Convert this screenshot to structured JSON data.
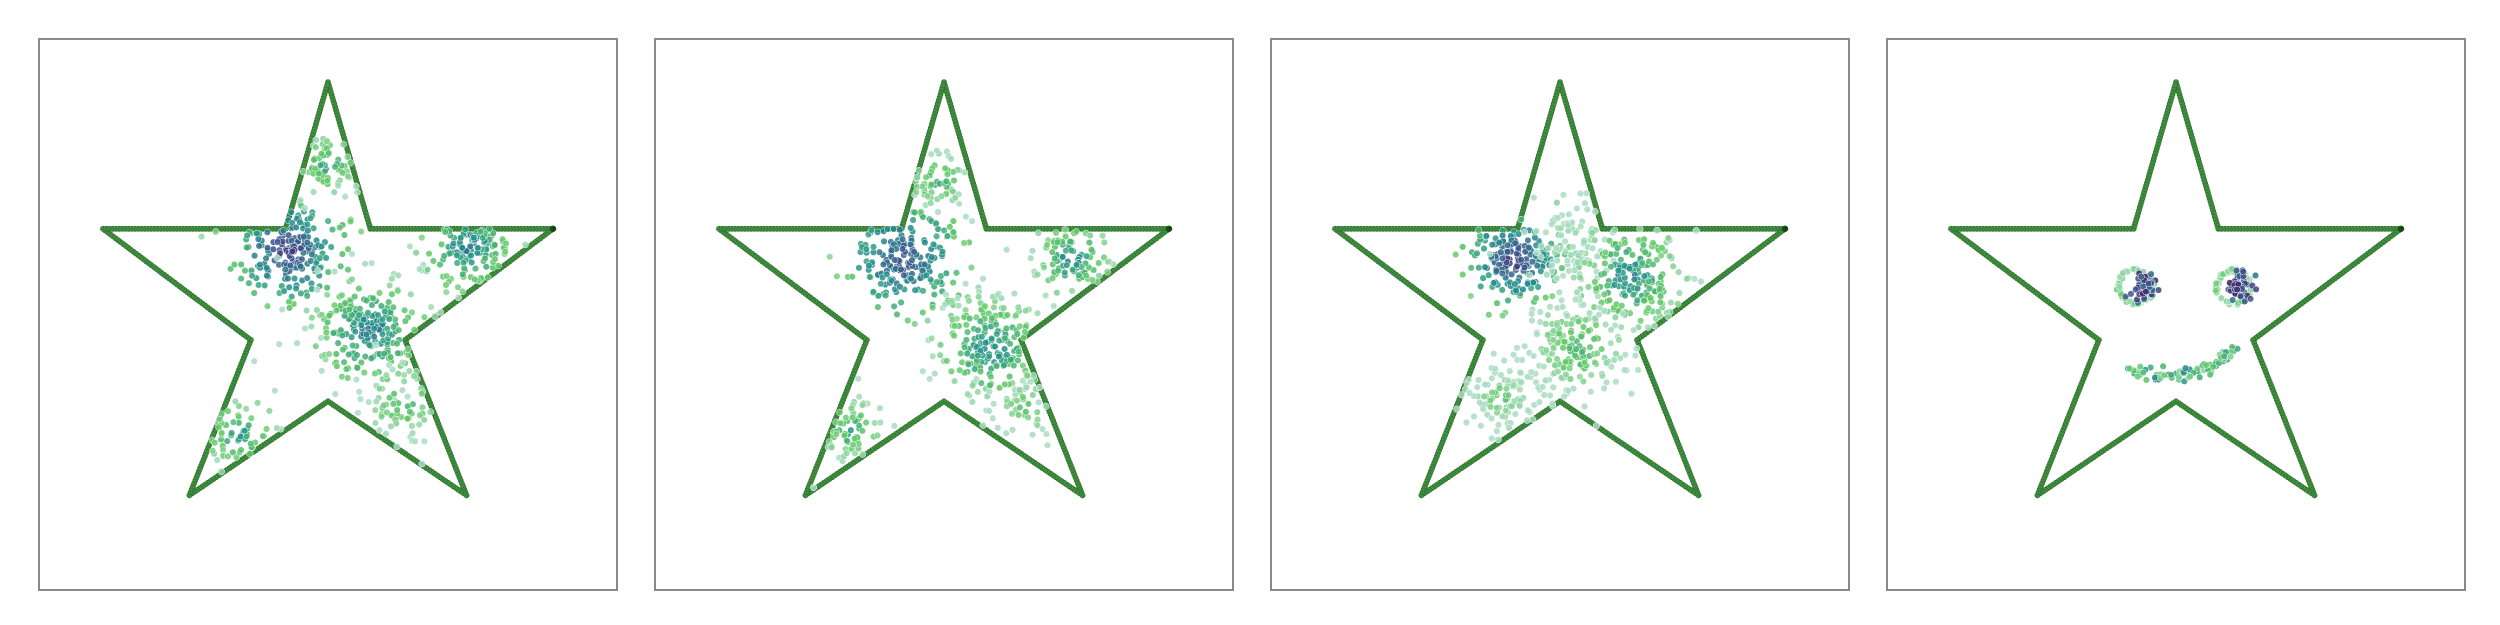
{
  "figure": {
    "panel_count": 4
  },
  "chart_data": [
    {
      "type": "scatter",
      "title": "",
      "xlabel": "",
      "ylabel": "",
      "xlim": [
        0,
        1
      ],
      "ylim": [
        0,
        1
      ],
      "grid": false,
      "ticks": false,
      "boundary": {
        "shape": "five-pointed star",
        "color": "#3f8f3f",
        "vertices": [
          [
            0.5,
            0.92
          ],
          [
            0.573,
            0.655
          ],
          [
            0.888,
            0.655
          ],
          [
            0.633,
            0.454
          ],
          [
            0.739,
            0.173
          ],
          [
            0.5,
            0.343
          ],
          [
            0.261,
            0.173
          ],
          [
            0.367,
            0.454
          ],
          [
            0.112,
            0.655
          ],
          [
            0.427,
            0.655
          ]
        ]
      },
      "colormap": [
        "#440154",
        "#3b528b",
        "#21918c",
        "#5ec962",
        "#a9dcc3"
      ],
      "clusters": [
        {
          "x": 0.43,
          "y": 0.615,
          "spread": 0.045,
          "count": 230,
          "density": 0.9
        },
        {
          "x": 0.5,
          "y": 0.77,
          "spread": 0.028,
          "count": 80,
          "density": 0.5
        },
        {
          "x": 0.74,
          "y": 0.62,
          "spread": 0.04,
          "count": 160,
          "density": 0.65
        },
        {
          "x": 0.57,
          "y": 0.47,
          "spread": 0.05,
          "count": 250,
          "density": 0.65
        },
        {
          "x": 0.35,
          "y": 0.28,
          "spread": 0.04,
          "count": 90,
          "density": 0.5
        },
        {
          "x": 0.63,
          "y": 0.34,
          "spread": 0.04,
          "count": 70,
          "density": 0.4
        }
      ]
    },
    {
      "type": "scatter",
      "title": "",
      "xlabel": "",
      "ylabel": "",
      "xlim": [
        0,
        1
      ],
      "ylim": [
        0,
        1
      ],
      "grid": false,
      "ticks": false,
      "boundary": {
        "shape": "five-pointed star",
        "color": "#3f8f3f",
        "same_as_panel": 1
      },
      "colormap": [
        "#440154",
        "#3b528b",
        "#21918c",
        "#5ec962",
        "#a9dcc3"
      ],
      "clusters": [
        {
          "x": 0.43,
          "y": 0.6,
          "spread": 0.05,
          "count": 220,
          "density": 0.85
        },
        {
          "x": 0.49,
          "y": 0.74,
          "spread": 0.03,
          "count": 70,
          "density": 0.45
        },
        {
          "x": 0.72,
          "y": 0.6,
          "spread": 0.035,
          "count": 110,
          "density": 0.6
        },
        {
          "x": 0.58,
          "y": 0.44,
          "spread": 0.05,
          "count": 230,
          "density": 0.6
        },
        {
          "x": 0.34,
          "y": 0.29,
          "spread": 0.035,
          "count": 80,
          "density": 0.45
        },
        {
          "x": 0.64,
          "y": 0.33,
          "spread": 0.035,
          "count": 50,
          "density": 0.3
        }
      ]
    },
    {
      "type": "scatter",
      "title": "",
      "xlabel": "",
      "ylabel": "",
      "xlim": [
        0,
        1
      ],
      "ylim": [
        0,
        1
      ],
      "grid": false,
      "ticks": false,
      "boundary": {
        "shape": "five-pointed star",
        "color": "#3f8f3f",
        "same_as_panel": 1
      },
      "colormap": [
        "#440154",
        "#3b528b",
        "#21918c",
        "#5ec962",
        "#a9dcc3"
      ],
      "clusters": [
        {
          "x": 0.42,
          "y": 0.6,
          "spread": 0.04,
          "count": 200,
          "density": 0.9
        },
        {
          "x": 0.52,
          "y": 0.63,
          "spread": 0.04,
          "count": 90,
          "density": 0.2
        },
        {
          "x": 0.62,
          "y": 0.57,
          "spread": 0.05,
          "count": 230,
          "density": 0.6
        },
        {
          "x": 0.53,
          "y": 0.44,
          "spread": 0.05,
          "count": 200,
          "density": 0.4
        },
        {
          "x": 0.4,
          "y": 0.35,
          "spread": 0.035,
          "count": 110,
          "density": 0.3
        }
      ]
    },
    {
      "type": "scatter",
      "title": "",
      "xlabel": "",
      "ylabel": "",
      "xlim": [
        0,
        1
      ],
      "ylim": [
        0,
        1
      ],
      "grid": false,
      "ticks": false,
      "boundary": {
        "shape": "five-pointed star",
        "color": "#3f8f3f",
        "same_as_panel": 1
      },
      "colormap": [
        "#440154",
        "#3b528b",
        "#21918c",
        "#5ec962",
        "#a9dcc3"
      ],
      "face": {
        "left_eye": {
          "x": 0.43,
          "y": 0.55,
          "ring_radius": 0.03,
          "pupil_x": 0.445,
          "pupil_y": 0.55,
          "pupil_spread": 0.012
        },
        "right_eye": {
          "x": 0.6,
          "y": 0.55,
          "ring_radius": 0.03,
          "pupil_x": 0.61,
          "pupil_y": 0.55,
          "pupil_spread": 0.012
        },
        "mouth": {
          "x": [
            0.42,
            0.47,
            0.52,
            0.57,
            0.6
          ],
          "y": [
            0.4,
            0.39,
            0.39,
            0.41,
            0.44
          ]
        }
      }
    }
  ]
}
